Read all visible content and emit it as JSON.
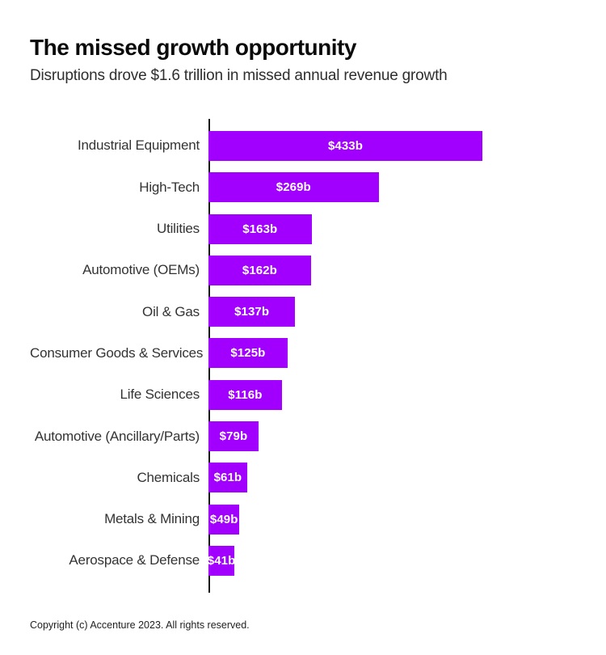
{
  "header": {
    "title": "The missed growth opportunity",
    "subtitle": "Disruptions drove $1.6 trillion in missed annual revenue growth"
  },
  "footer": {
    "copyright": "Copyright (c) Accenture 2023. All rights reserved."
  },
  "colors": {
    "bar": "#A100FF",
    "value_label": "#FFFFFF",
    "axis": "#1A1A1A",
    "title_text": "#0A0A0A",
    "subtitle_text": "#2E2E2E",
    "category_text": "#333333"
  },
  "chart_data": {
    "type": "bar",
    "orientation": "horizontal",
    "title": "The missed growth opportunity",
    "subtitle": "Disruptions drove $1.6 trillion in missed annual revenue growth",
    "xlabel": "",
    "ylabel": "",
    "unit": "billions USD",
    "grid": false,
    "legend": false,
    "xlim": [
      0,
      450
    ],
    "categories": [
      "Industrial Equipment",
      "High-Tech",
      "Utilities",
      "Automotive (OEMs)",
      "Oil & Gas",
      "Consumer Goods & Services",
      "Life Sciences",
      "Automotive (Ancillary/Parts)",
      "Chemicals",
      "Metals & Mining",
      "Aerospace & Defense"
    ],
    "values": [
      433,
      269,
      163,
      162,
      137,
      125,
      116,
      79,
      61,
      49,
      41
    ],
    "value_labels": [
      "$433b",
      "$269b",
      "$163b",
      "$162b",
      "$137b",
      "$125b",
      "$116b",
      "$79b",
      "$61b",
      "$49b",
      "$41b"
    ]
  }
}
